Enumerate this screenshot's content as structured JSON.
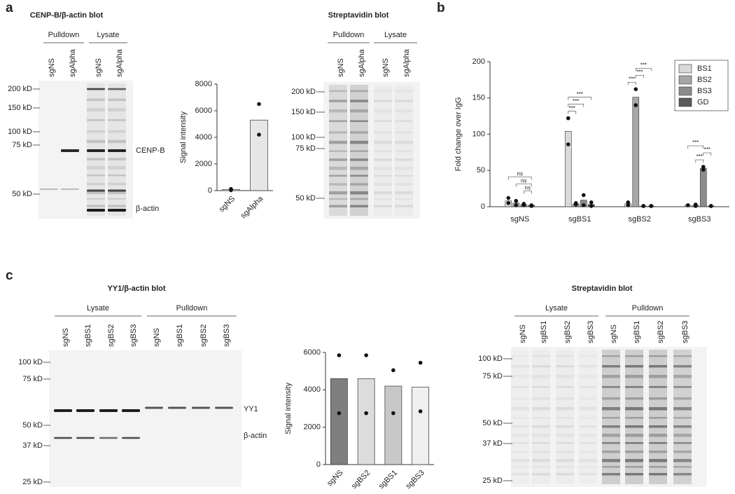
{
  "panels": [
    "a",
    "b",
    "c"
  ],
  "blots": [
    {
      "title": "CENP-B/β-actin blot",
      "groups": [
        "Pulldown",
        "Lysate"
      ],
      "lanes": [
        "sgNS",
        "sgAlpha",
        "sgNS",
        "sgAlpha"
      ],
      "markers": [
        "200 kD",
        "150 kD",
        "100 kD",
        "75 kD",
        "50 kD"
      ],
      "band_labels": [
        "CENP-B",
        "β-actin"
      ]
    },
    {
      "title": "Streptavidin blot",
      "groups": [
        "Pulldown",
        "Lysate"
      ],
      "lanes": [
        "sgNS",
        "sgAlpha",
        "sgNS",
        "sgAlpha"
      ],
      "markers": [
        "200 kD",
        "150 kD",
        "100 kD",
        "75 kD",
        "50 kD"
      ]
    },
    {
      "title": "YY1/β-actin blot",
      "groups": [
        "Lysate",
        "Pulldown"
      ],
      "lanes": [
        "sgNS",
        "sgBS1",
        "sgBS2",
        "sgBS3",
        "sgNS",
        "sgBS1",
        "sgBS2",
        "sgBS3"
      ],
      "markers": [
        "100 kD",
        "75 kD",
        "50 kD",
        "37 kD",
        "25 kD"
      ],
      "band_labels": [
        "YY1",
        "β-actin"
      ]
    },
    {
      "title": "Streptavidin blot",
      "groups": [
        "Lysate",
        "Pulldown"
      ],
      "lanes": [
        "sgNS",
        "sgBS1",
        "sgBS2",
        "sgBS3",
        "sgNS",
        "sgBS1",
        "sgBS2",
        "sgBS3"
      ],
      "markers": [
        "100 kD",
        "75 kD",
        "50 kD",
        "37 kD",
        "25 kD"
      ]
    }
  ],
  "chart_data": [
    {
      "type": "bar",
      "ylabel": "Signal intensity",
      "categories": [
        "sgNS",
        "sgAlpha"
      ],
      "values": [
        80,
        5300
      ],
      "points": [
        [
          30,
          120
        ],
        [
          6500,
          4200
        ]
      ],
      "color": "#e6e6e6",
      "ylim": [
        0,
        8000
      ],
      "yticks": [
        0,
        2000,
        4000,
        6000,
        8000
      ]
    },
    {
      "type": "bar",
      "ylabel": "Fold change over IgG",
      "categories": [
        "sgNS",
        "sgBS1",
        "sgBS2",
        "sgBS3"
      ],
      "series": [
        {
          "name": "BS1",
          "color": "#d9d9d9",
          "values": [
            8,
            104,
            4,
            2
          ],
          "points": [
            [
              12,
              5
            ],
            [
              122,
              86
            ],
            [
              6,
              2
            ],
            [
              2,
              2
            ]
          ]
        },
        {
          "name": "BS2",
          "color": "#a6a6a6",
          "values": [
            5,
            4,
            151,
            2
          ],
          "points": [
            [
              8,
              2
            ],
            [
              5,
              3
            ],
            [
              162,
              140
            ],
            [
              3,
              1
            ]
          ]
        },
        {
          "name": "BS3",
          "color": "#8c8c8c",
          "values": [
            3,
            9,
            1,
            53
          ],
          "points": [
            [
              4,
              2
            ],
            [
              16,
              2
            ],
            [
              1,
              1
            ],
            [
              55,
              51
            ]
          ]
        },
        {
          "name": "GD",
          "color": "#595959",
          "values": [
            2,
            3,
            1,
            1
          ],
          "points": [
            [
              2,
              1
            ],
            [
              6,
              1
            ],
            [
              1,
              1
            ],
            [
              1,
              1
            ]
          ]
        }
      ],
      "annotations": [
        "ns",
        "ns",
        "ns",
        "***",
        "***",
        "***",
        "***",
        "***",
        "***",
        "***",
        "***",
        "***"
      ],
      "legend": "top-right",
      "ylim": [
        0,
        200
      ],
      "yticks": [
        0,
        50,
        100,
        150,
        200
      ]
    },
    {
      "type": "bar",
      "ylabel": "Signal intensity",
      "categories": [
        "sgNS",
        "sgBS2",
        "sgBS1",
        "sgBS3"
      ],
      "values": [
        4600,
        4600,
        4200,
        4150
      ],
      "points": [
        [
          5850,
          2750
        ],
        [
          5850,
          2750
        ],
        [
          5050,
          2750
        ],
        [
          5450,
          2850
        ]
      ],
      "colors": [
        "#7f7f7f",
        "#dcdcdc",
        "#c8c8c8",
        "#efefef"
      ],
      "ylim": [
        0,
        6000
      ],
      "yticks": [
        0,
        2000,
        4000,
        6000
      ]
    }
  ]
}
